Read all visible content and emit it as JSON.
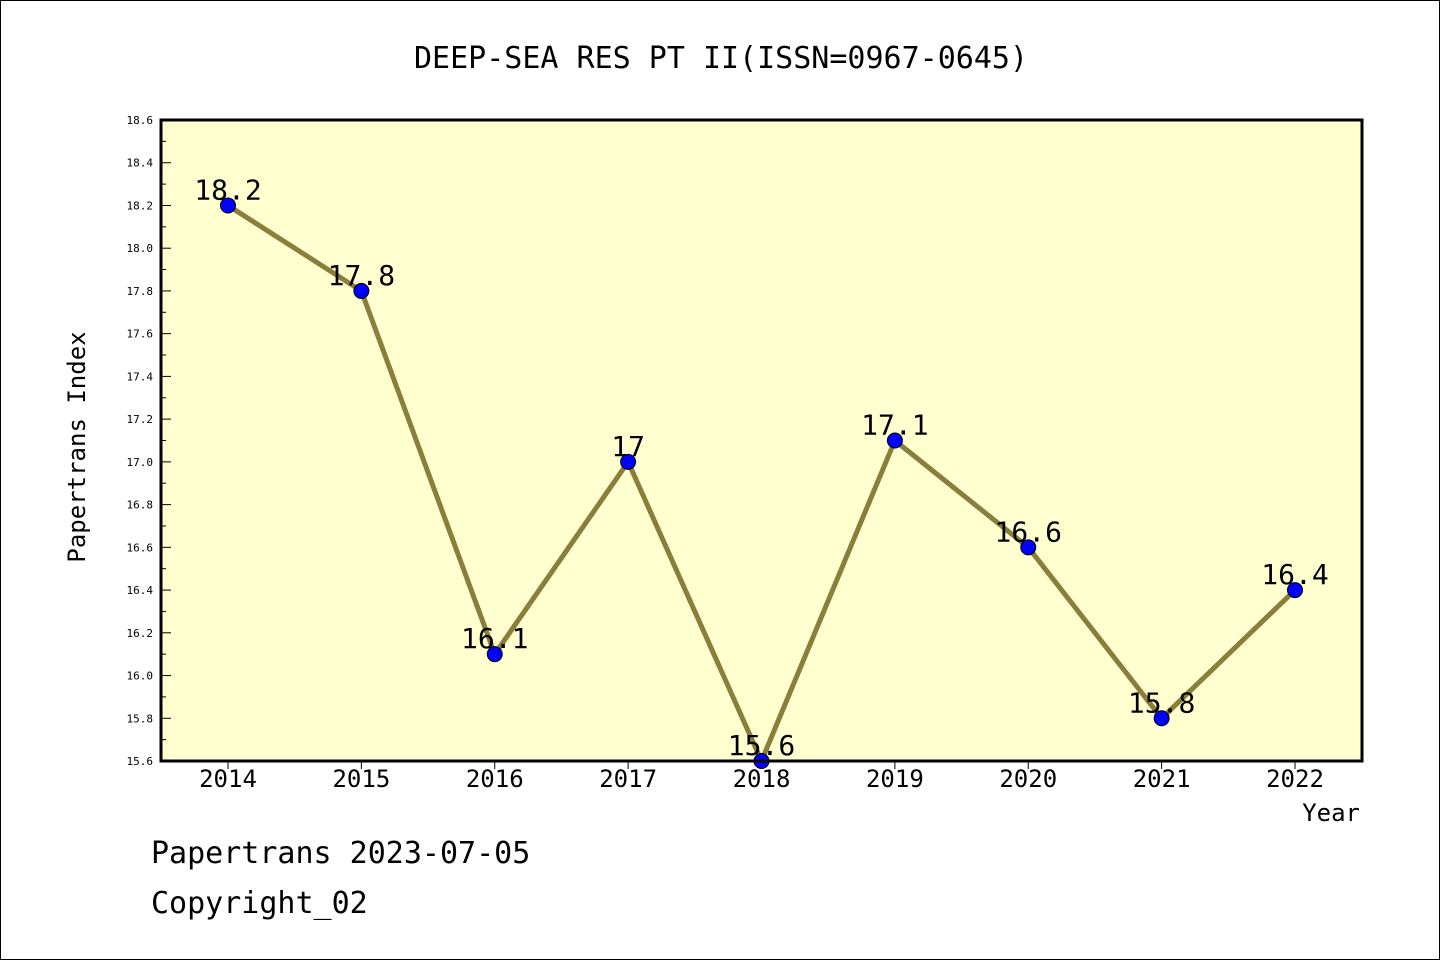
{
  "chart_data": {
    "type": "line",
    "title": "DEEP-SEA RES PT II(ISSN=0967-0645)",
    "xlabel": "Year",
    "ylabel": "Papertrans Index",
    "categories": [
      "2014",
      "2015",
      "2016",
      "2017",
      "2018",
      "2019",
      "2020",
      "2021",
      "2022"
    ],
    "series": [
      {
        "values": [
          18.2,
          17.8,
          16.1,
          17.0,
          15.6,
          17.1,
          16.6,
          15.8,
          16.4
        ],
        "labels": [
          "18.2",
          "17.8",
          "16.1",
          "17",
          "15.6",
          "17.1",
          "16.6",
          "15.8",
          "16.4"
        ],
        "line_color": "#8b7d3a",
        "marker_color": "#0000ff"
      }
    ],
    "ylim": [
      15.6,
      18.6
    ],
    "yticks": [
      "15.6",
      "15.8",
      "16.0",
      "16.2",
      "16.4",
      "16.6",
      "16.8",
      "17.0",
      "17.2",
      "17.4",
      "17.6",
      "17.8",
      "18.0",
      "18.2",
      "18.4",
      "18.6"
    ],
    "plot_background": "#ffffd0",
    "grid": false,
    "legend": "none"
  },
  "footer": {
    "line1": "Papertrans 2023-07-05",
    "line2": "Copyright_02"
  }
}
